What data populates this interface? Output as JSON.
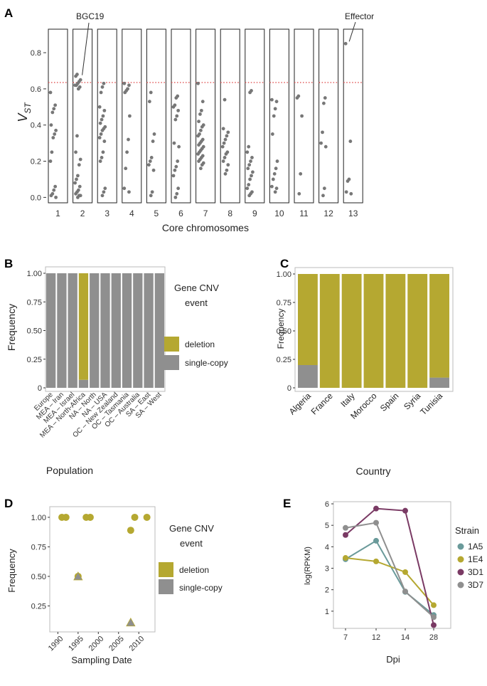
{
  "colors": {
    "deletion": "#b5a831",
    "single_copy": "#8f8f8f",
    "threshold": "#e05050",
    "point": "#777777",
    "1A5": "#6a9a9a",
    "1E4": "#b5a831",
    "3D1": "#7a3a64",
    "3D7": "#8f8f8f"
  },
  "chart_data": [
    {
      "id": "A",
      "panel_label": "A",
      "type": "scatter",
      "title": "",
      "xlabel": "Core chromosomes",
      "ylabel_main": "V",
      "ylabel_sub": "ST",
      "ylim": [
        -0.03,
        0.93
      ],
      "yticks": [
        0.0,
        0.2,
        0.4,
        0.6,
        0.8
      ],
      "ytick_labels": [
        "0.0",
        "0.2",
        "0.4",
        "0.6",
        "0.8"
      ],
      "threshold": 0.635,
      "categories": [
        "1",
        "2",
        "3",
        "4",
        "5",
        "6",
        "7",
        "8",
        "9",
        "10",
        "11",
        "12",
        "13"
      ],
      "annotations": [
        {
          "text": "BGC19",
          "chromosome": "2",
          "value": 0.66
        },
        {
          "text": "Effector",
          "chromosome": "13",
          "value": 0.85
        }
      ],
      "points": [
        [
          0.58,
          0.51,
          0.49,
          0.47,
          0.4,
          0.37,
          0.35,
          0.33,
          0.25,
          0.2,
          0.06,
          0.04,
          0.02,
          0.01,
          0.0
        ],
        [
          0.68,
          0.67,
          0.65,
          0.64,
          0.63,
          0.62,
          0.62,
          0.61,
          0.6,
          0.34,
          0.25,
          0.21,
          0.18,
          0.12,
          0.1,
          0.08,
          0.06,
          0.04,
          0.03,
          0.02,
          0.01,
          0.01,
          0.0
        ],
        [
          0.63,
          0.61,
          0.58,
          0.5,
          0.48,
          0.45,
          0.43,
          0.41,
          0.39,
          0.38,
          0.37,
          0.35,
          0.33,
          0.31,
          0.25,
          0.22,
          0.2,
          0.05,
          0.03,
          0.01
        ],
        [
          0.63,
          0.62,
          0.6,
          0.59,
          0.58,
          0.45,
          0.32,
          0.25,
          0.16,
          0.05,
          0.03
        ],
        [
          0.58,
          0.53,
          0.35,
          0.31,
          0.22,
          0.2,
          0.18,
          0.15,
          0.03,
          0.01
        ],
        [
          0.56,
          0.55,
          0.51,
          0.5,
          0.48,
          0.45,
          0.43,
          0.3,
          0.28,
          0.2,
          0.17,
          0.15,
          0.12,
          0.05,
          0.02,
          0.0
        ],
        [
          0.63,
          0.53,
          0.48,
          0.46,
          0.42,
          0.4,
          0.39,
          0.37,
          0.35,
          0.34,
          0.32,
          0.31,
          0.3,
          0.29,
          0.28,
          0.27,
          0.26,
          0.25,
          0.24,
          0.23,
          0.22,
          0.21,
          0.2,
          0.19,
          0.18,
          0.16
        ],
        [
          0.54,
          0.38,
          0.36,
          0.34,
          0.32,
          0.3,
          0.28,
          0.25,
          0.24,
          0.22,
          0.2,
          0.18,
          0.15,
          0.13
        ],
        [
          0.59,
          0.58,
          0.28,
          0.25,
          0.22,
          0.2,
          0.18,
          0.16,
          0.14,
          0.12,
          0.1,
          0.07,
          0.05,
          0.03,
          0.02,
          0.01
        ],
        [
          0.54,
          0.53,
          0.49,
          0.45,
          0.35,
          0.2,
          0.16,
          0.13,
          0.1,
          0.06,
          0.05,
          0.03
        ],
        [
          0.56,
          0.55,
          0.45,
          0.13,
          0.02
        ],
        [
          0.55,
          0.52,
          0.36,
          0.3,
          0.28,
          0.05,
          0.01
        ],
        [
          0.85,
          0.31,
          0.1,
          0.09,
          0.03,
          0.02
        ]
      ]
    },
    {
      "id": "B",
      "panel_label": "B",
      "type": "bar",
      "xlabel": "Population",
      "ylabel": "Frequency",
      "ylim": [
        0,
        1
      ],
      "yticks": [
        0,
        0.25,
        0.5,
        0.75,
        1.0
      ],
      "ytick_labels": [
        "0",
        "0.25",
        "0.50",
        "0.75",
        "1.00"
      ],
      "categories": [
        "Europe",
        "MEA – Iran",
        "MEA – Israel",
        "MEA – North-Africa",
        "NA – North",
        "NA – USA",
        "OC – New Zealand",
        "OC – Tasmania",
        "OC – Australia",
        "SA – East",
        "SA – West"
      ],
      "series": [
        {
          "name": "deletion",
          "values": [
            0,
            0,
            0,
            0.93,
            0,
            0,
            0,
            0,
            0,
            0,
            0
          ]
        },
        {
          "name": "single-copy",
          "values": [
            1,
            1,
            1,
            0.07,
            1,
            1,
            1,
            1,
            1,
            1,
            1
          ]
        }
      ],
      "legend_title_1": "Gene CNV",
      "legend_title_2": "event",
      "legend": [
        "deletion",
        "single-copy"
      ]
    },
    {
      "id": "C",
      "panel_label": "C",
      "type": "bar",
      "xlabel": "Country",
      "ylabel": "Frequency",
      "ylim": [
        0,
        1
      ],
      "yticks": [
        0,
        0.25,
        0.5,
        0.75,
        1.0
      ],
      "ytick_labels": [
        "0",
        "0.25",
        "0.50",
        "0.75",
        "1.00"
      ],
      "categories": [
        "Algeria",
        "France",
        "Italy",
        "Morocco",
        "Spain",
        "Syria",
        "Tunisia"
      ],
      "series": [
        {
          "name": "deletion",
          "values": [
            0.8,
            1,
            1,
            1,
            1,
            1,
            0.91
          ]
        },
        {
          "name": "single-copy",
          "values": [
            0.2,
            0,
            0,
            0,
            0,
            0,
            0.09
          ]
        }
      ]
    },
    {
      "id": "D",
      "panel_label": "D",
      "type": "scatter",
      "xlabel": "Sampling Date",
      "ylabel": "Frequency",
      "xlim": [
        1988,
        2014
      ],
      "ylim": [
        0.03,
        1.09
      ],
      "xticks": [
        1990,
        1995,
        2000,
        2005,
        2010
      ],
      "xtick_labels": [
        "1990",
        "1995",
        "2000",
        "2005",
        "2010"
      ],
      "yticks": [
        0.25,
        0.5,
        0.75,
        1.0
      ],
      "ytick_labels": [
        "0.25",
        "0.50",
        "0.75",
        "1.00"
      ],
      "deletion_points": [
        [
          1991,
          1.0
        ],
        [
          1992,
          1.0
        ],
        [
          1995,
          0.5
        ],
        [
          1997,
          1.0
        ],
        [
          1998,
          1.0
        ],
        [
          2008,
          0.89
        ],
        [
          2009,
          1.0
        ],
        [
          2012,
          1.0
        ]
      ],
      "single_copy_points": [
        [
          1995,
          0.5
        ],
        [
          2008,
          0.11
        ]
      ],
      "legend_title_1": "Gene CNV",
      "legend_title_2": "event",
      "legend": [
        "deletion",
        "single-copy"
      ]
    },
    {
      "id": "E",
      "panel_label": "E",
      "type": "line",
      "xlabel": "Dpi",
      "ylabel": "log(RPKM)",
      "categories": [
        "7",
        "12",
        "14",
        "28"
      ],
      "ylim": [
        0.2,
        6.1
      ],
      "yticks": [
        1,
        2,
        3,
        4,
        5,
        6
      ],
      "ytick_labels": [
        "1",
        "2",
        "3",
        "4",
        "5",
        "6"
      ],
      "legend_title": "Strain",
      "series": [
        {
          "name": "1A5",
          "values": [
            3.42,
            4.28,
            1.9,
            0.82
          ]
        },
        {
          "name": "1E4",
          "values": [
            3.48,
            3.32,
            2.82,
            1.28
          ]
        },
        {
          "name": "3D1",
          "values": [
            4.55,
            5.78,
            5.68,
            0.35
          ]
        },
        {
          "name": "3D7",
          "values": [
            4.88,
            5.12,
            1.92,
            0.72
          ]
        }
      ]
    }
  ]
}
